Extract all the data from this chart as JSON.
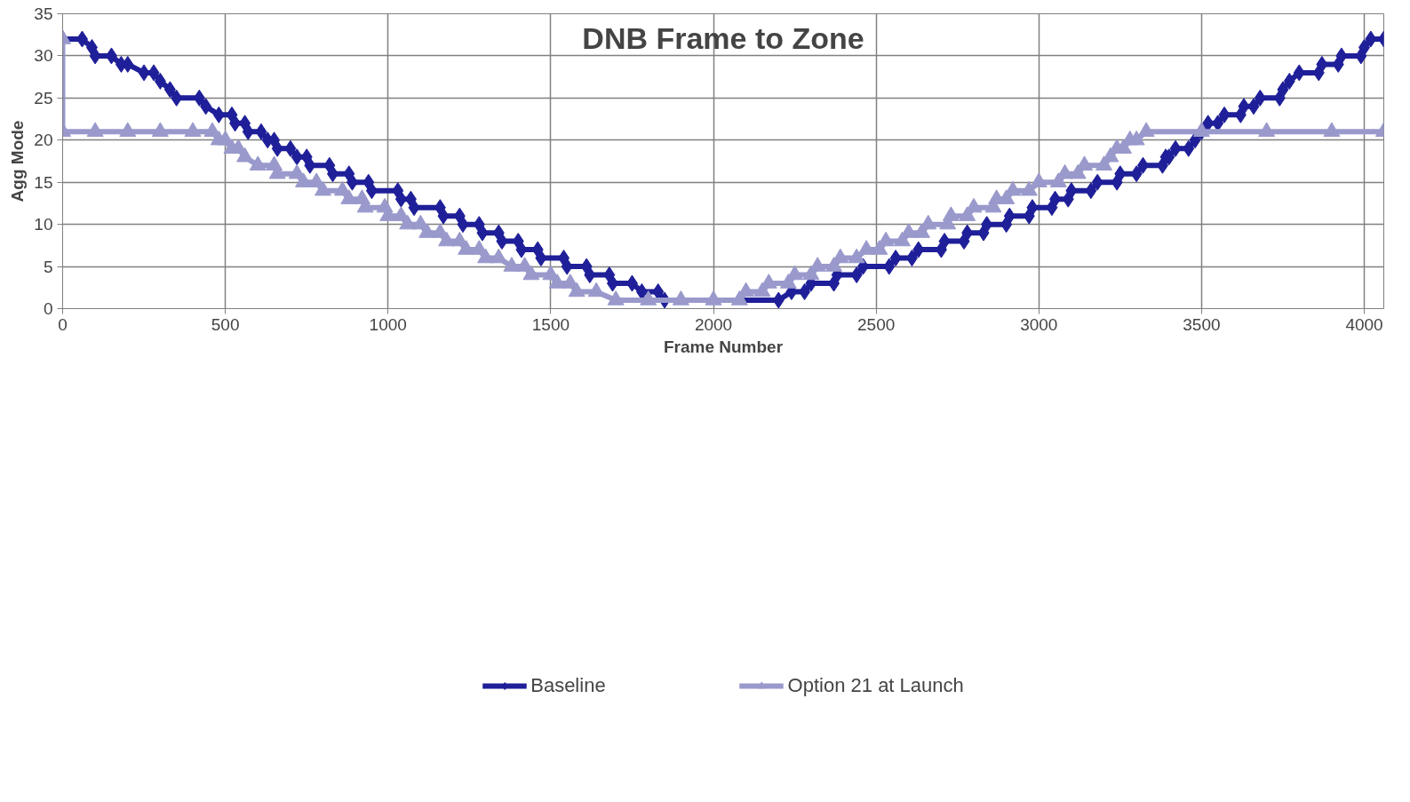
{
  "chart_data": {
    "type": "line",
    "title": "DNB Frame to Zone",
    "xlabel": "Frame Number",
    "ylabel": "Agg Mode",
    "xlim": [
      0,
      4060
    ],
    "ylim": [
      0,
      35
    ],
    "xticks": [
      0,
      500,
      1000,
      1500,
      2000,
      2500,
      3000,
      3500,
      4000
    ],
    "yticks": [
      0,
      5,
      10,
      15,
      20,
      25,
      30,
      35
    ],
    "grid": true,
    "legend": "bottom",
    "line_style": "solid",
    "series": [
      {
        "name": "Baseline",
        "color": "#1f1f99",
        "marker": "diamond",
        "x": [
          0,
          60,
          90,
          100,
          150,
          180,
          200,
          250,
          280,
          300,
          330,
          350,
          420,
          440,
          480,
          520,
          530,
          560,
          570,
          610,
          630,
          650,
          660,
          700,
          720,
          750,
          760,
          820,
          830,
          880,
          890,
          940,
          950,
          1030,
          1040,
          1070,
          1080,
          1160,
          1170,
          1220,
          1230,
          1280,
          1290,
          1340,
          1350,
          1400,
          1410,
          1460,
          1470,
          1540,
          1550,
          1610,
          1620,
          1680,
          1690,
          1750,
          1780,
          1830,
          1850,
          2200,
          2240,
          2280,
          2300,
          2370,
          2380,
          2440,
          2460,
          2540,
          2560,
          2610,
          2630,
          2700,
          2710,
          2770,
          2780,
          2830,
          2840,
          2900,
          2910,
          2970,
          2980,
          3040,
          3050,
          3090,
          3100,
          3160,
          3180,
          3240,
          3250,
          3300,
          3320,
          3380,
          3390,
          3400,
          3420,
          3460,
          3480,
          3500,
          3520,
          3550,
          3570,
          3620,
          3630,
          3660,
          3680,
          3740,
          3750,
          3770,
          3800,
          3860,
          3870,
          3920,
          3930,
          3990,
          4000,
          4020,
          4060
        ],
        "values": [
          32,
          32,
          31,
          30,
          30,
          29,
          29,
          28,
          28,
          27,
          26,
          25,
          25,
          24,
          23,
          23,
          22,
          22,
          21,
          21,
          20,
          20,
          19,
          19,
          18,
          18,
          17,
          17,
          16,
          16,
          15,
          15,
          14,
          14,
          13,
          13,
          12,
          12,
          11,
          11,
          10,
          10,
          9,
          9,
          8,
          8,
          7,
          7,
          6,
          6,
          5,
          5,
          4,
          4,
          3,
          3,
          2,
          2,
          1,
          1,
          2,
          2,
          3,
          3,
          4,
          4,
          5,
          5,
          6,
          6,
          7,
          7,
          8,
          8,
          9,
          9,
          10,
          10,
          11,
          11,
          12,
          12,
          13,
          13,
          14,
          14,
          15,
          15,
          16,
          16,
          17,
          17,
          18,
          18,
          19,
          19,
          20,
          21,
          22,
          22,
          23,
          23,
          24,
          24,
          25,
          25,
          26,
          27,
          28,
          28,
          29,
          29,
          30,
          30,
          31,
          32,
          32
        ]
      },
      {
        "name": "Option 21 at Launch",
        "color": "#9999cc",
        "marker": "triangle",
        "x": [
          0,
          0,
          100,
          200,
          300,
          400,
          460,
          480,
          500,
          520,
          540,
          560,
          600,
          650,
          660,
          720,
          740,
          780,
          800,
          860,
          880,
          920,
          930,
          990,
          1000,
          1040,
          1060,
          1100,
          1120,
          1160,
          1180,
          1220,
          1240,
          1280,
          1300,
          1340,
          1380,
          1420,
          1440,
          1500,
          1520,
          1560,
          1580,
          1640,
          1700,
          1800,
          1900,
          2000,
          2080,
          2100,
          2150,
          2170,
          2230,
          2250,
          2300,
          2320,
          2370,
          2390,
          2440,
          2470,
          2510,
          2530,
          2580,
          2600,
          2640,
          2660,
          2720,
          2730,
          2780,
          2800,
          2860,
          2870,
          2900,
          2920,
          2970,
          3000,
          3060,
          3080,
          3120,
          3140,
          3200,
          3220,
          3240,
          3260,
          3280,
          3300,
          3330,
          3500,
          3700,
          3900,
          4060
        ],
        "values": [
          32,
          21,
          21,
          21,
          21,
          21,
          21,
          20,
          20,
          19,
          19,
          18,
          17,
          17,
          16,
          16,
          15,
          15,
          14,
          14,
          13,
          13,
          12,
          12,
          11,
          11,
          10,
          10,
          9,
          9,
          8,
          8,
          7,
          7,
          6,
          6,
          5,
          5,
          4,
          4,
          3,
          3,
          2,
          2,
          1,
          1,
          1,
          1,
          1,
          2,
          2,
          3,
          3,
          4,
          4,
          5,
          5,
          6,
          6,
          7,
          7,
          8,
          8,
          9,
          9,
          10,
          10,
          11,
          11,
          12,
          12,
          13,
          13,
          14,
          14,
          15,
          15,
          16,
          16,
          17,
          17,
          18,
          19,
          19,
          20,
          20,
          21,
          21,
          21,
          21,
          21
        ]
      }
    ]
  }
}
